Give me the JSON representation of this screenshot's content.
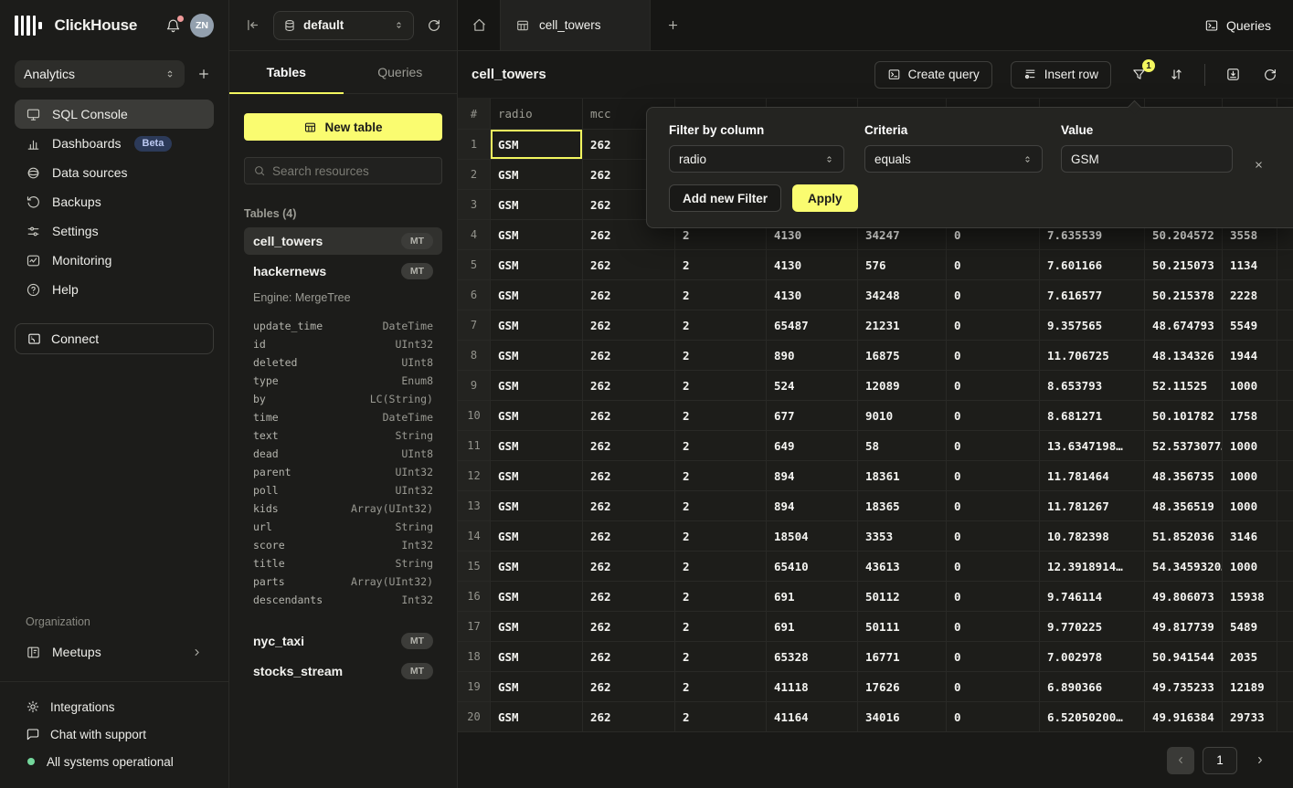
{
  "brand": {
    "name": "ClickHouse",
    "workspace": "Analytics",
    "avatar_initials": "ZN"
  },
  "sidebar": {
    "nav": [
      {
        "label": "SQL Console",
        "active": true
      },
      {
        "label": "Dashboards",
        "badge": "Beta"
      },
      {
        "label": "Data sources"
      },
      {
        "label": "Backups"
      },
      {
        "label": "Settings"
      },
      {
        "label": "Monitoring"
      },
      {
        "label": "Help"
      }
    ],
    "connect_label": "Connect",
    "organization": {
      "label": "Organization",
      "items": [
        {
          "label": "Meetups"
        }
      ]
    },
    "footer": [
      {
        "label": "Integrations"
      },
      {
        "label": "Chat with support"
      },
      {
        "label": "All systems operational"
      }
    ]
  },
  "tables_panel": {
    "database": "default",
    "tabs": [
      {
        "label": "Tables",
        "active": true
      },
      {
        "label": "Queries",
        "active": false
      }
    ],
    "new_table_label": "New table",
    "search_placeholder": "Search resources",
    "section_label": "Tables (4)",
    "tables": [
      {
        "name": "cell_towers",
        "badge": "MT",
        "selected": true
      },
      {
        "name": "hackernews",
        "badge": "MT",
        "engine": "Engine: MergeTree",
        "schema": [
          {
            "name": "update_time",
            "type": "DateTime"
          },
          {
            "name": "id",
            "type": "UInt32"
          },
          {
            "name": "deleted",
            "type": "UInt8"
          },
          {
            "name": "type",
            "type": "Enum8"
          },
          {
            "name": "by",
            "type": "LC(String)"
          },
          {
            "name": "time",
            "type": "DateTime"
          },
          {
            "name": "text",
            "type": "String"
          },
          {
            "name": "dead",
            "type": "UInt8"
          },
          {
            "name": "parent",
            "type": "UInt32"
          },
          {
            "name": "poll",
            "type": "UInt32"
          },
          {
            "name": "kids",
            "type": "Array(UInt32)"
          },
          {
            "name": "url",
            "type": "String"
          },
          {
            "name": "score",
            "type": "Int32"
          },
          {
            "name": "title",
            "type": "String"
          },
          {
            "name": "parts",
            "type": "Array(UInt32)"
          },
          {
            "name": "descendants",
            "type": "Int32"
          }
        ]
      },
      {
        "name": "nyc_taxi",
        "badge": "MT"
      },
      {
        "name": "stocks_stream",
        "badge": "MT"
      }
    ]
  },
  "main": {
    "active_tab_label": "cell_towers",
    "queries_label": "Queries",
    "toolbar": {
      "title": "cell_towers",
      "create_query_label": "Create query",
      "insert_row_label": "Insert row",
      "filter_badge": "1"
    },
    "filter_popup": {
      "column_label": "Filter by column",
      "column_value": "radio",
      "criteria_label": "Criteria",
      "criteria_value": "equals",
      "value_label": "Value",
      "value_input": "GSM",
      "add_filter_label": "Add new Filter",
      "apply_label": "Apply"
    },
    "table": {
      "headers": [
        "#",
        "radio",
        "mcc",
        "",
        "",
        "",
        "",
        "",
        "",
        ""
      ],
      "selected_cell": {
        "row_index": 0,
        "col_index": 0,
        "column": "radio"
      },
      "rows": [
        [
          "GSM",
          "262",
          "",
          "",
          "",
          "",
          "",
          "",
          ""
        ],
        [
          "GSM",
          "262",
          "",
          "",
          "",
          "",
          "",
          "",
          ""
        ],
        [
          "GSM",
          "262",
          "",
          "",
          "",
          "",
          "",
          "",
          ""
        ],
        [
          "GSM",
          "262",
          "2",
          "4130",
          "34247",
          "0",
          "7.635539",
          "50.204572",
          "3558"
        ],
        [
          "GSM",
          "262",
          "2",
          "4130",
          "576",
          "0",
          "7.601166",
          "50.215073",
          "1134"
        ],
        [
          "GSM",
          "262",
          "2",
          "4130",
          "34248",
          "0",
          "7.616577",
          "50.215378",
          "2228"
        ],
        [
          "GSM",
          "262",
          "2",
          "65487",
          "21231",
          "0",
          "9.357565",
          "48.674793",
          "5549"
        ],
        [
          "GSM",
          "262",
          "2",
          "890",
          "16875",
          "0",
          "11.706725",
          "48.134326",
          "1944"
        ],
        [
          "GSM",
          "262",
          "2",
          "524",
          "12089",
          "0",
          "8.653793",
          "52.11525",
          "1000"
        ],
        [
          "GSM",
          "262",
          "2",
          "677",
          "9010",
          "0",
          "8.681271",
          "50.101782",
          "1758"
        ],
        [
          "GSM",
          "262",
          "2",
          "649",
          "58",
          "0",
          "13.6347198…",
          "52.5373077…",
          "1000"
        ],
        [
          "GSM",
          "262",
          "2",
          "894",
          "18361",
          "0",
          "11.781464",
          "48.356735",
          "1000"
        ],
        [
          "GSM",
          "262",
          "2",
          "894",
          "18365",
          "0",
          "11.781267",
          "48.356519",
          "1000"
        ],
        [
          "GSM",
          "262",
          "2",
          "18504",
          "3353",
          "0",
          "10.782398",
          "51.852036",
          "3146"
        ],
        [
          "GSM",
          "262",
          "2",
          "65410",
          "43613",
          "0",
          "12.3918914…",
          "54.3459320…",
          "1000"
        ],
        [
          "GSM",
          "262",
          "2",
          "691",
          "50112",
          "0",
          "9.746114",
          "49.806073",
          "15938"
        ],
        [
          "GSM",
          "262",
          "2",
          "691",
          "50111",
          "0",
          "9.770225",
          "49.817739",
          "5489"
        ],
        [
          "GSM",
          "262",
          "2",
          "65328",
          "16771",
          "0",
          "7.002978",
          "50.941544",
          "2035"
        ],
        [
          "GSM",
          "262",
          "2",
          "41118",
          "17626",
          "0",
          "6.890366",
          "49.735233",
          "12189"
        ],
        [
          "GSM",
          "262",
          "2",
          "41164",
          "34016",
          "0",
          "6.52050200…",
          "49.916384",
          "29733"
        ]
      ]
    },
    "pagination": {
      "current_page": "1"
    }
  },
  "colors": {
    "accent_yellow": "#fafc70",
    "selection_yellow": "#f3f75f",
    "beta_badge_bg": "#2c3a59",
    "status_green": "#74d79c",
    "notification_red": "#f09a9a"
  }
}
